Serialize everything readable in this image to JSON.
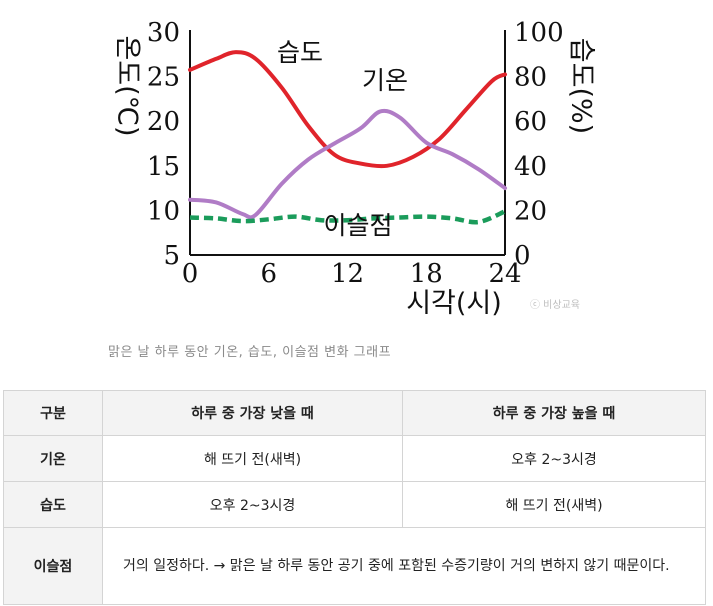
{
  "chart_data": {
    "type": "line",
    "x_axis": {
      "label": "시각(시)",
      "ticks": [
        "0",
        "6",
        "12",
        "18",
        "24"
      ],
      "range": [
        0,
        24
      ]
    },
    "y_left": {
      "label": "온도(℃)",
      "ticks": [
        "5",
        "10",
        "15",
        "20",
        "25",
        "30"
      ],
      "range": [
        5,
        30
      ]
    },
    "y_right": {
      "label": "습도(%)",
      "ticks": [
        "0",
        "20",
        "40",
        "60",
        "80",
        "100"
      ],
      "range": [
        0,
        100
      ]
    },
    "series": [
      {
        "name": "습도",
        "axis": "right",
        "color": "#e0242b",
        "style": "solid",
        "x": [
          0,
          2,
          3.5,
          5,
          7,
          9,
          11,
          13,
          15,
          17,
          19,
          21,
          23,
          24
        ],
        "y": [
          83,
          88,
          91,
          88,
          75,
          58,
          45,
          41,
          40,
          44,
          52,
          65,
          78,
          81
        ]
      },
      {
        "name": "기온",
        "axis": "left",
        "color": "#b07cc6",
        "style": "solid",
        "x": [
          0,
          2,
          4,
          5,
          7,
          9,
          11,
          13,
          14.5,
          16,
          18,
          20,
          22,
          24
        ],
        "y": [
          11.2,
          10.9,
          9.6,
          9.5,
          13,
          15.7,
          17.5,
          19.2,
          21.1,
          20.4,
          17.6,
          16.3,
          14.6,
          12.5
        ]
      },
      {
        "name": "이슬점",
        "axis": "left",
        "color": "#1b9c5b",
        "style": "dashed",
        "x": [
          0,
          2,
          4,
          6,
          8,
          10,
          12,
          14,
          16,
          18,
          20,
          22,
          24
        ],
        "y": [
          9.2,
          9.1,
          8.8,
          9.0,
          9.3,
          8.9,
          8.9,
          9.1,
          9.2,
          9.3,
          9.1,
          8.7,
          9.9
        ]
      }
    ],
    "annotations": [
      "습도",
      "기온",
      "이슬점"
    ],
    "watermark": "ⓒ 비상교육",
    "caption": "맑은 날 하루 동안 기온, 습도, 이슬점 변화 그래프"
  },
  "table": {
    "headers": [
      "구분",
      "하루 중 가장 낮을 때",
      "하루 중 가장 높을 때"
    ],
    "rows": [
      {
        "label": "기온",
        "low": "해 뜨기 전(새벽)",
        "high": "오후 2~3시경"
      },
      {
        "label": "습도",
        "low": "오후 2~3시경",
        "high": "해 뜨기 전(새벽)"
      },
      {
        "label": "이슬점",
        "note": "거의 일정하다. → 맑은 날 하루 동안 공기 중에 포함된 수증기량이 거의 변하지 않기 때문이다."
      }
    ]
  }
}
